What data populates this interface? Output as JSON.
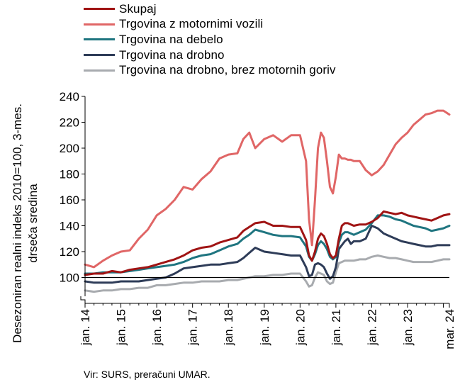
{
  "chart_data": {
    "type": "line",
    "title": "",
    "xlabel": "",
    "ylabel": "Desezoniran realni indeks 2010=100, 3-mes. drseča sredina",
    "ylim": [
      80,
      240
    ],
    "yticks": [
      100,
      120,
      140,
      160,
      180,
      200,
      220,
      240
    ],
    "grid": false,
    "legend_position": "top",
    "x_tick_labels": [
      "jan. 14",
      "jan. 15",
      "jan. 16",
      "jan. 17",
      "jan. 18",
      "jan. 19",
      "jan. 20",
      "jan. 21",
      "jan. 22",
      "jan. 23",
      "mar. 24"
    ],
    "x_tick_months": [
      0,
      12,
      24,
      36,
      48,
      60,
      72,
      84,
      96,
      108,
      122
    ],
    "series_months": [
      0,
      3,
      6,
      9,
      12,
      15,
      18,
      21,
      24,
      27,
      30,
      33,
      36,
      39,
      42,
      45,
      48,
      51,
      53,
      55,
      57,
      60,
      63,
      66,
      69,
      72,
      74,
      75,
      76,
      77,
      78,
      79,
      80,
      81,
      82,
      83,
      84,
      85,
      86,
      87,
      88,
      89,
      90,
      92,
      94,
      96,
      98,
      100,
      102,
      104,
      106,
      108,
      110,
      112,
      114,
      116,
      118,
      120,
      122
    ],
    "series": [
      {
        "name": "Skupaj",
        "color": "#a01414",
        "values": [
          102,
          103,
          103,
          105,
          104,
          106,
          107,
          108,
          110,
          112,
          114,
          117,
          121,
          123,
          124,
          127,
          129,
          131,
          136,
          139,
          142,
          143,
          140,
          140,
          139,
          139,
          129,
          117,
          113,
          120,
          130,
          134,
          132,
          126,
          118,
          115,
          117,
          130,
          140,
          142,
          142,
          141,
          140,
          141,
          141,
          143,
          146,
          151,
          150,
          149,
          150,
          148,
          147,
          146,
          145,
          144,
          146,
          148,
          149
        ]
      },
      {
        "name": "Trgovina z motornimi vozili",
        "color": "#e06666",
        "values": [
          110,
          108,
          113,
          117,
          120,
          121,
          130,
          137,
          148,
          153,
          160,
          170,
          168,
          176,
          182,
          192,
          195,
          196,
          207,
          212,
          200,
          207,
          210,
          205,
          210,
          210,
          190,
          145,
          125,
          160,
          200,
          212,
          208,
          190,
          170,
          165,
          178,
          195,
          192,
          192,
          191,
          191,
          190,
          190,
          183,
          179,
          182,
          187,
          195,
          203,
          208,
          212,
          218,
          222,
          226,
          227,
          229,
          229,
          226
        ]
      },
      {
        "name": "Trgovina na debelo",
        "color": "#1f7580",
        "values": [
          103,
          103,
          104,
          104,
          104,
          105,
          106,
          107,
          108,
          109,
          110,
          112,
          115,
          117,
          118,
          121,
          124,
          126,
          130,
          133,
          137,
          135,
          133,
          132,
          132,
          131,
          124,
          116,
          113,
          118,
          125,
          128,
          126,
          122,
          116,
          114,
          116,
          127,
          133,
          135,
          135,
          134,
          133,
          135,
          137,
          142,
          148,
          148,
          147,
          145,
          144,
          142,
          140,
          139,
          138,
          136,
          137,
          138,
          140
        ]
      },
      {
        "name": "Trgovina na drobno",
        "color": "#2e3c58",
        "values": [
          97,
          96,
          96,
          96,
          97,
          97,
          97,
          98,
          99,
          100,
          103,
          107,
          108,
          109,
          110,
          110,
          111,
          112,
          115,
          119,
          123,
          120,
          119,
          118,
          117,
          117,
          108,
          101,
          102,
          110,
          111,
          110,
          108,
          103,
          99,
          101,
          108,
          122,
          125,
          128,
          130,
          126,
          128,
          128,
          130,
          140,
          138,
          134,
          132,
          130,
          128,
          127,
          126,
          125,
          124,
          124,
          125,
          125,
          125
        ]
      },
      {
        "name": "Trgovina na drobno, brez motornih goriv",
        "color": "#a8abaf",
        "values": [
          90,
          89,
          90,
          90,
          91,
          91,
          92,
          92,
          94,
          94,
          95,
          96,
          96,
          97,
          97,
          97,
          98,
          98,
          99,
          100,
          101,
          101,
          102,
          102,
          103,
          103,
          97,
          93,
          94,
          100,
          104,
          103,
          102,
          97,
          95,
          96,
          104,
          111,
          112,
          113,
          113,
          113,
          113,
          114,
          114,
          116,
          117,
          116,
          115,
          115,
          114,
          113,
          112,
          112,
          112,
          112,
          113,
          114,
          114
        ]
      }
    ]
  },
  "source_note": "Vir: SURS, preračuni UMAR."
}
